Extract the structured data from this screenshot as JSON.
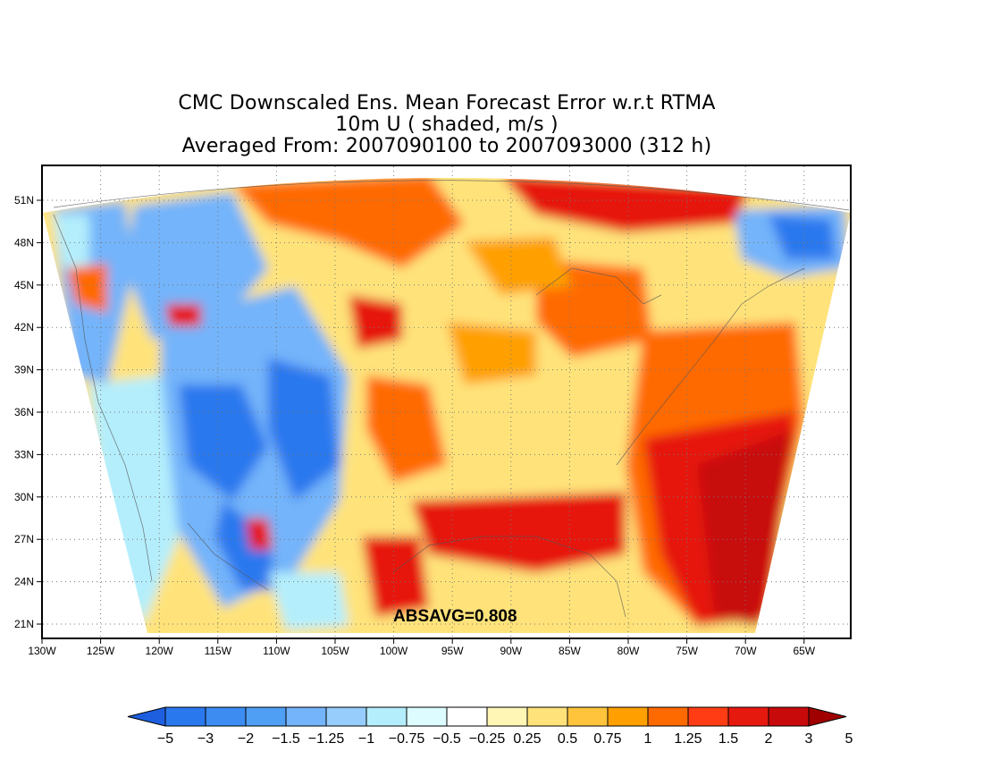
{
  "title": {
    "line1": "CMC Downscaled Ens. Mean Forecast Error w.r.t RTMA",
    "line2": "10m U ( shaded, m/s )",
    "line3": "Averaged From: 2007090100 to 2007093000 (312 h)"
  },
  "stat_label": "ABSAVG=0.808",
  "map": {
    "lon_labels": [
      "130W",
      "125W",
      "120W",
      "115W",
      "110W",
      "105W",
      "100W",
      "95W",
      "90W",
      "85W",
      "80W",
      "75W",
      "70W",
      "65W"
    ],
    "lat_labels": [
      "51N",
      "48N",
      "45N",
      "42N",
      "39N",
      "36N",
      "33N",
      "30N",
      "27N",
      "24N",
      "21N"
    ],
    "grid": "dotted"
  },
  "colorbar": {
    "labels": [
      "−5",
      "−3",
      "−2",
      "−1.5",
      "−1.25",
      "−1",
      "−0.75",
      "−0.5",
      "−0.25",
      "0.25",
      "0.5",
      "0.75",
      "1",
      "1.25",
      "1.5",
      "2",
      "3",
      "5"
    ],
    "colors": [
      "#1e5fe0",
      "#2a78ee",
      "#3c8cf2",
      "#4f9ff5",
      "#73b4fa",
      "#96cdfc",
      "#b4eefc",
      "#dcfcff",
      "#ffffff",
      "#fff5b4",
      "#ffe37a",
      "#ffc43c",
      "#ffa000",
      "#ff6a00",
      "#ff3c14",
      "#e6190f",
      "#c80a0a",
      "#a00000"
    ]
  },
  "field_colors": {
    "neg_strong": "#2a78ee",
    "neg": "#73b4fa",
    "neg_weak": "#b4eefc",
    "pos_weak": "#ffe37a",
    "pos": "#ffa000",
    "pos_mid": "#ff6a00",
    "pos_strong": "#e6190f",
    "pos_max": "#c80a0a"
  }
}
